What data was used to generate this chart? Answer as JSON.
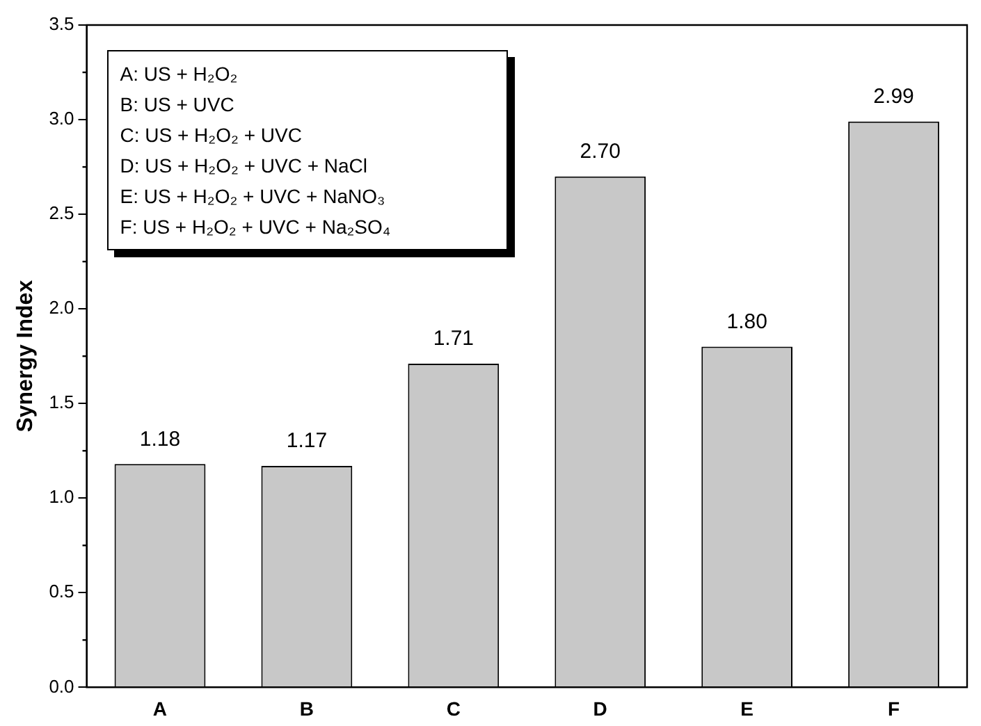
{
  "chart_data": {
    "type": "bar",
    "ylabel": "Synergy Index",
    "categories": [
      "A",
      "B",
      "C",
      "D",
      "E",
      "F"
    ],
    "values": [
      1.18,
      1.17,
      1.71,
      2.7,
      1.8,
      2.99
    ],
    "value_labels": [
      "1.18",
      "1.17",
      "1.71",
      "2.70",
      "1.80",
      "2.99"
    ],
    "color": "#c8c8c8",
    "ylim": [
      0,
      3.5
    ],
    "yticks": [
      {
        "value": 0,
        "label": "0.0"
      },
      {
        "value": 0.5,
        "label": "0.5"
      },
      {
        "value": 1,
        "label": "1.0"
      },
      {
        "value": 1.5,
        "label": "1.5"
      },
      {
        "value": 2,
        "label": "2.0"
      },
      {
        "value": 2.5,
        "label": "2.5"
      },
      {
        "value": 3,
        "label": "3.0"
      },
      {
        "value": 3.5,
        "label": "3.5"
      }
    ],
    "grid": false,
    "legend": false,
    "annotations": [
      "A: US + H₂O₂",
      "B: US + UVC",
      "C: US + H₂O₂ + UVC",
      "D: US + H₂O₂ + UVC + NaCl",
      "E: US + H₂O₂ + UVC + NaNO₃",
      "F: US + H₂O₂ + UVC + Na₂SO₄"
    ]
  }
}
